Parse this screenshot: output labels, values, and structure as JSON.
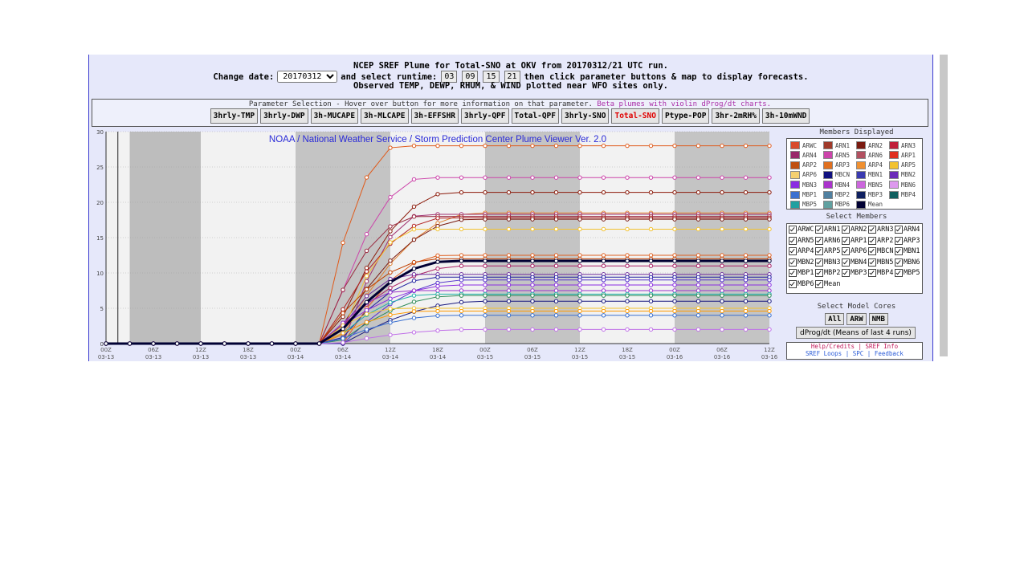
{
  "header": {
    "line1": "NCEP SREF Plume for Total-SNO at OKV from 20170312/21 UTC run.",
    "change_date_label": "Change date:",
    "date_value": "20170312",
    "select_runtime_label": "and select runtime:",
    "runtimes": [
      "03",
      "09",
      "15",
      "21"
    ],
    "instruction": "then click parameter buttons & map to display forecasts.",
    "line3": "Observed TEMP, DEWP, RHUM, & WIND plotted near WFO sites only."
  },
  "params": {
    "title_text": "Parameter Selection - Hover over button for more information on that parameter.",
    "beta_text": "Beta plumes with violin dProg/dt charts.",
    "buttons": [
      "3hrly-TMP",
      "3hrly-DWP",
      "3h-MUCAPE",
      "3h-MLCAPE",
      "3h-EFFSHR",
      "3hrly-QPF",
      "Total-QPF",
      "3hrly-SNO",
      "Total-SNO",
      "Ptype-POP",
      "3hr-2mRH%",
      "3h-10mWND"
    ],
    "active": "Total-SNO",
    "active_color": "#e00000"
  },
  "chart_data": {
    "type": "line",
    "title": "NOAA / National Weather Service / Storm Prediction Center Plume Viewer Ver. 2.0",
    "title_color": "#2a2ad8",
    "ylim": [
      0,
      30
    ],
    "y_ticks": [
      0,
      5,
      10,
      15,
      20,
      25,
      30
    ],
    "x_tick_labels": [
      [
        "00Z",
        "03-13"
      ],
      [
        "06Z",
        "03-13"
      ],
      [
        "12Z",
        "03-13"
      ],
      [
        "18Z",
        "03-13"
      ],
      [
        "00Z",
        "03-14"
      ],
      [
        "06Z",
        "03-14"
      ],
      [
        "12Z",
        "03-14"
      ],
      [
        "18Z",
        "03-14"
      ],
      [
        "00Z",
        "03-15"
      ],
      [
        "06Z",
        "03-15"
      ],
      [
        "12Z",
        "03-15"
      ],
      [
        "18Z",
        "03-15"
      ],
      [
        "00Z",
        "03-16"
      ],
      [
        "06Z",
        "03-16"
      ],
      [
        "12Z",
        "03-16"
      ]
    ],
    "x_hours_range": [
      0,
      84
    ],
    "night_bands_hours": [
      [
        3,
        12
      ],
      [
        24,
        36
      ],
      [
        48,
        60
      ],
      [
        72,
        84
      ]
    ],
    "obs_line_hour": 1.5,
    "mean_final": 11.7,
    "series_final": [
      {
        "name": "ARWC",
        "final": 28.0,
        "color": "#e05a1a"
      },
      {
        "name": "ARN1",
        "final": 23.5,
        "color": "#cc44aa"
      },
      {
        "name": "ARN2",
        "final": 21.4,
        "color": "#8b1a0a"
      },
      {
        "name": "ARN3",
        "final": 18.5,
        "color": "#e08030"
      },
      {
        "name": "ARN4",
        "final": 18.3,
        "color": "#a03070"
      },
      {
        "name": "ARN5",
        "final": 18.0,
        "color": "#9a2a40"
      },
      {
        "name": "ARN6",
        "final": 17.8,
        "color": "#b22222"
      },
      {
        "name": "ARP1",
        "final": 17.6,
        "color": "#7a1a10"
      },
      {
        "name": "ARP2",
        "final": 16.2,
        "color": "#f2c230"
      },
      {
        "name": "ARP3",
        "final": 12.5,
        "color": "#e06020"
      },
      {
        "name": "ARP4",
        "final": 12.0,
        "color": "#c04000"
      },
      {
        "name": "ARP5",
        "final": 11.0,
        "color": "#aa2266"
      },
      {
        "name": "ARP6",
        "final": 9.8,
        "color": "#7030a0"
      },
      {
        "name": "MBCN",
        "final": 9.4,
        "color": "#2020a0"
      },
      {
        "name": "MBN1",
        "final": 9.0,
        "color": "#5533cc"
      },
      {
        "name": "MBN2",
        "final": 8.3,
        "color": "#8a2be2"
      },
      {
        "name": "MBN3",
        "final": 7.5,
        "color": "#9932cc"
      },
      {
        "name": "MBN4",
        "final": 7.0,
        "color": "#20b2aa"
      },
      {
        "name": "MBN5",
        "final": 6.8,
        "color": "#2e8b57"
      },
      {
        "name": "MBN6",
        "final": 6.0,
        "color": "#1a1a80"
      },
      {
        "name": "MBP1",
        "final": 5.0,
        "color": "#f2c230"
      },
      {
        "name": "MBP2",
        "final": 4.6,
        "color": "#ff9900"
      },
      {
        "name": "MBP3",
        "final": 4.0,
        "color": "#3a70d0"
      },
      {
        "name": "MBP4",
        "final": 2.0,
        "color": "#c070e8"
      }
    ]
  },
  "members_displayed": {
    "title": "Members Displayed",
    "items": [
      {
        "name": "ARWC",
        "color": "#d84a2a"
      },
      {
        "name": "ARN1",
        "color": "#a03a2a"
      },
      {
        "name": "ARN2",
        "color": "#7a1a10"
      },
      {
        "name": "ARN3",
        "color": "#c0203a"
      },
      {
        "name": "ARN4",
        "color": "#9a2a6a"
      },
      {
        "name": "ARN5",
        "color": "#cc44aa"
      },
      {
        "name": "ARN6",
        "color": "#b25060"
      },
      {
        "name": "ARP1",
        "color": "#e03020"
      },
      {
        "name": "ARP2",
        "color": "#c05010"
      },
      {
        "name": "ARP3",
        "color": "#e07020"
      },
      {
        "name": "ARP4",
        "color": "#f09030"
      },
      {
        "name": "ARP5",
        "color": "#f2c230"
      },
      {
        "name": "ARP6",
        "color": "#f5d070"
      },
      {
        "name": "MBCN",
        "color": "#101080"
      },
      {
        "name": "MBN1",
        "color": "#3a3ab0"
      },
      {
        "name": "MBN2",
        "color": "#6a2ab8"
      },
      {
        "name": "MBN3",
        "color": "#8a2be2"
      },
      {
        "name": "MBN4",
        "color": "#aa33cc"
      },
      {
        "name": "MBN5",
        "color": "#cc66dd"
      },
      {
        "name": "MBN6",
        "color": "#dd99ee"
      },
      {
        "name": "MBP1",
        "color": "#3a70d0"
      },
      {
        "name": "MBP2",
        "color": "#5080a0"
      },
      {
        "name": "MBP3",
        "color": "#102060"
      },
      {
        "name": "MBP4",
        "color": "#106060"
      },
      {
        "name": "MBP5",
        "color": "#20a0a0"
      },
      {
        "name": "MBP6",
        "color": "#60a0a0"
      },
      {
        "name": "Mean",
        "color": "#000033"
      }
    ]
  },
  "select_members": {
    "title": "Select Members",
    "items": [
      "ARWC",
      "ARN1",
      "ARN2",
      "ARN3",
      "ARN4",
      "ARN5",
      "ARN6",
      "ARP1",
      "ARP2",
      "ARP3",
      "ARP4",
      "ARP5",
      "ARP6",
      "MBCN",
      "MBN1",
      "MBN2",
      "MBN3",
      "MBN4",
      "MBN5",
      "MBN6",
      "MBP1",
      "MBP2",
      "MBP3",
      "MBP4",
      "MBP5",
      "MBP6",
      "Mean"
    ]
  },
  "model_cores": {
    "title": "Select Model Cores",
    "buttons": [
      "All",
      "ARW",
      "NMB"
    ],
    "dprog_label": "dProg/dt (Means of last 4 runs)"
  },
  "links": {
    "help": "Help/Credits",
    "sep": "|",
    "info": "SREF Info",
    "loops": "SREF Loops",
    "spc": "SPC",
    "feedback": "Feedback"
  }
}
